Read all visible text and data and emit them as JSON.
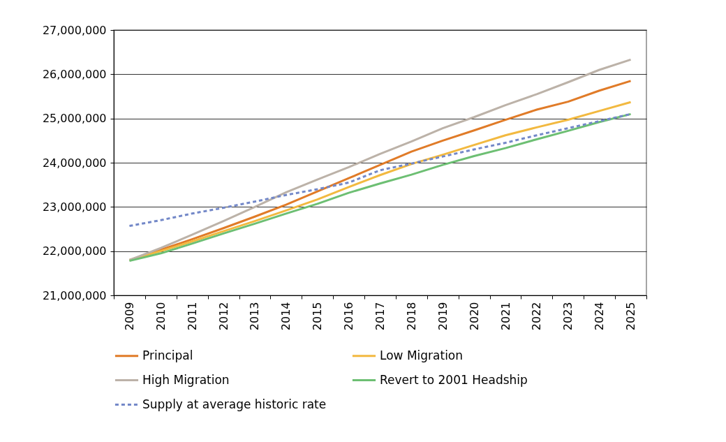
{
  "chart_data": {
    "type": "line",
    "categories": [
      "2009",
      "2010",
      "2011",
      "2012",
      "2013",
      "2014",
      "2015",
      "2016",
      "2017",
      "2018",
      "2019",
      "2020",
      "2021",
      "2022",
      "2023",
      "2024",
      "2025"
    ],
    "series": [
      {
        "name": "Principal",
        "color": "#e07b28",
        "values": [
          21800000,
          22030000,
          22270000,
          22520000,
          22780000,
          23050000,
          23350000,
          23650000,
          23950000,
          24250000,
          24500000,
          24730000,
          24970000,
          25200000,
          25380000,
          25630000,
          25850000
        ]
      },
      {
        "name": "Low Migration",
        "color": "#f2b940",
        "values": [
          21800000,
          22000000,
          22220000,
          22450000,
          22680000,
          22920000,
          23170000,
          23450000,
          23720000,
          23970000,
          24180000,
          24400000,
          24620000,
          24800000,
          24970000,
          25170000,
          25370000
        ]
      },
      {
        "name": "High Migration",
        "color": "#bcb2a8",
        "values": [
          21800000,
          22070000,
          22370000,
          22680000,
          23000000,
          23330000,
          23620000,
          23900000,
          24200000,
          24480000,
          24780000,
          25030000,
          25300000,
          25550000,
          25820000,
          26100000,
          26330000
        ]
      },
      {
        "name": "Revert to 2001 Headship",
        "color": "#6dbf73",
        "values": [
          21780000,
          21950000,
          22170000,
          22400000,
          22620000,
          22850000,
          23070000,
          23320000,
          23530000,
          23730000,
          23950000,
          24150000,
          24330000,
          24530000,
          24720000,
          24920000,
          25100000
        ]
      },
      {
        "name": "Supply at average historic rate",
        "color": "#7388c8",
        "line_style": "dashed",
        "values": [
          22570000,
          22700000,
          22850000,
          22980000,
          23120000,
          23270000,
          23400000,
          23550000,
          23830000,
          23980000,
          24140000,
          24300000,
          24450000,
          24620000,
          24780000,
          24940000,
          25100000
        ]
      }
    ],
    "ylim": [
      21000000,
      27000000
    ],
    "yticks": [
      {
        "value": 21000000,
        "label": "21,000,000"
      },
      {
        "value": 22000000,
        "label": "22,000,000"
      },
      {
        "value": 23000000,
        "label": "23,000,000"
      },
      {
        "value": 24000000,
        "label": "24,000,000"
      },
      {
        "value": 25000000,
        "label": "25,000,000"
      },
      {
        "value": 26000000,
        "label": "26,000,000"
      },
      {
        "value": 27000000,
        "label": "27,000,000"
      }
    ],
    "grid": "y",
    "legend": "bottom",
    "marker": "none",
    "line_style": "solid"
  }
}
